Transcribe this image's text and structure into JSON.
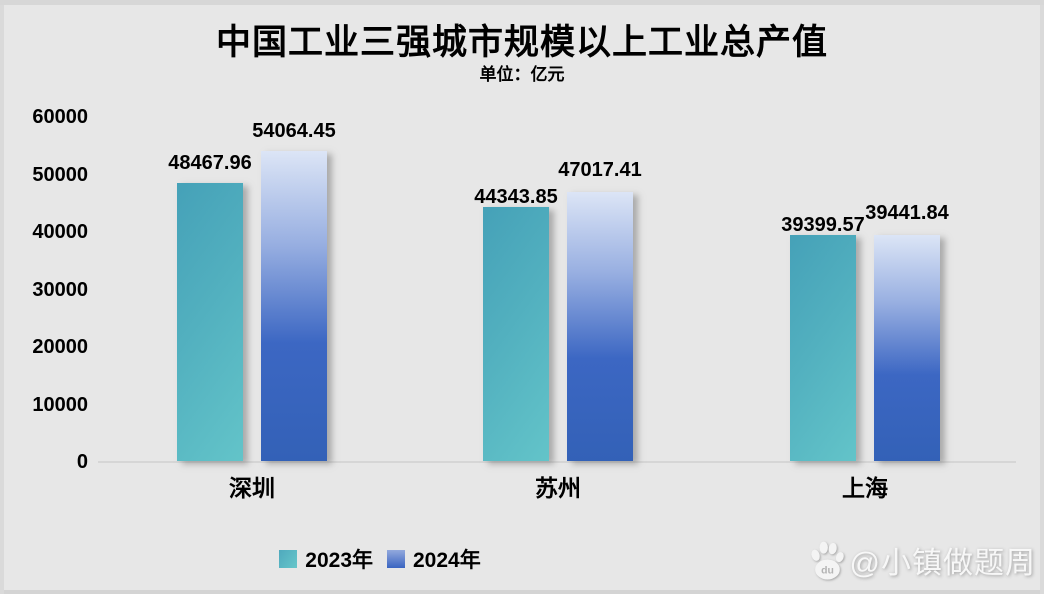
{
  "page": {
    "background": "#e7e7e7",
    "border_color": "#d9d9d9"
  },
  "chart_data": {
    "type": "bar",
    "title": "中国工业三强城市规模以上工业总产值",
    "subtitle": "单位：亿元",
    "categories": [
      "深圳",
      "苏州",
      "上海"
    ],
    "series": [
      {
        "name": "2023年",
        "values": [
          48467.96,
          44343.85,
          39399.57
        ],
        "color": "#52b0bf",
        "gradient": [
          "#45a1b8",
          "#63c4c9"
        ]
      },
      {
        "name": "2024年",
        "values": [
          54064.45,
          47017.41,
          39441.84
        ],
        "color": "#3a64c1",
        "gradient": [
          "#dce5f6",
          "#3361b7"
        ]
      }
    ],
    "ylim": [
      0,
      60000
    ],
    "ytick_step": 10000,
    "ytick_labels": [
      "0",
      "10000",
      "20000",
      "30000",
      "40000",
      "50000",
      "60000"
    ],
    "grid": false,
    "legend_position": "bottom",
    "value_labels_decimals": 2
  },
  "legend": {
    "items": [
      {
        "label": "2023年"
      },
      {
        "label": "2024年"
      }
    ]
  },
  "watermark": {
    "icon": "baidu-paw-icon",
    "text": "@小镇做题周"
  }
}
